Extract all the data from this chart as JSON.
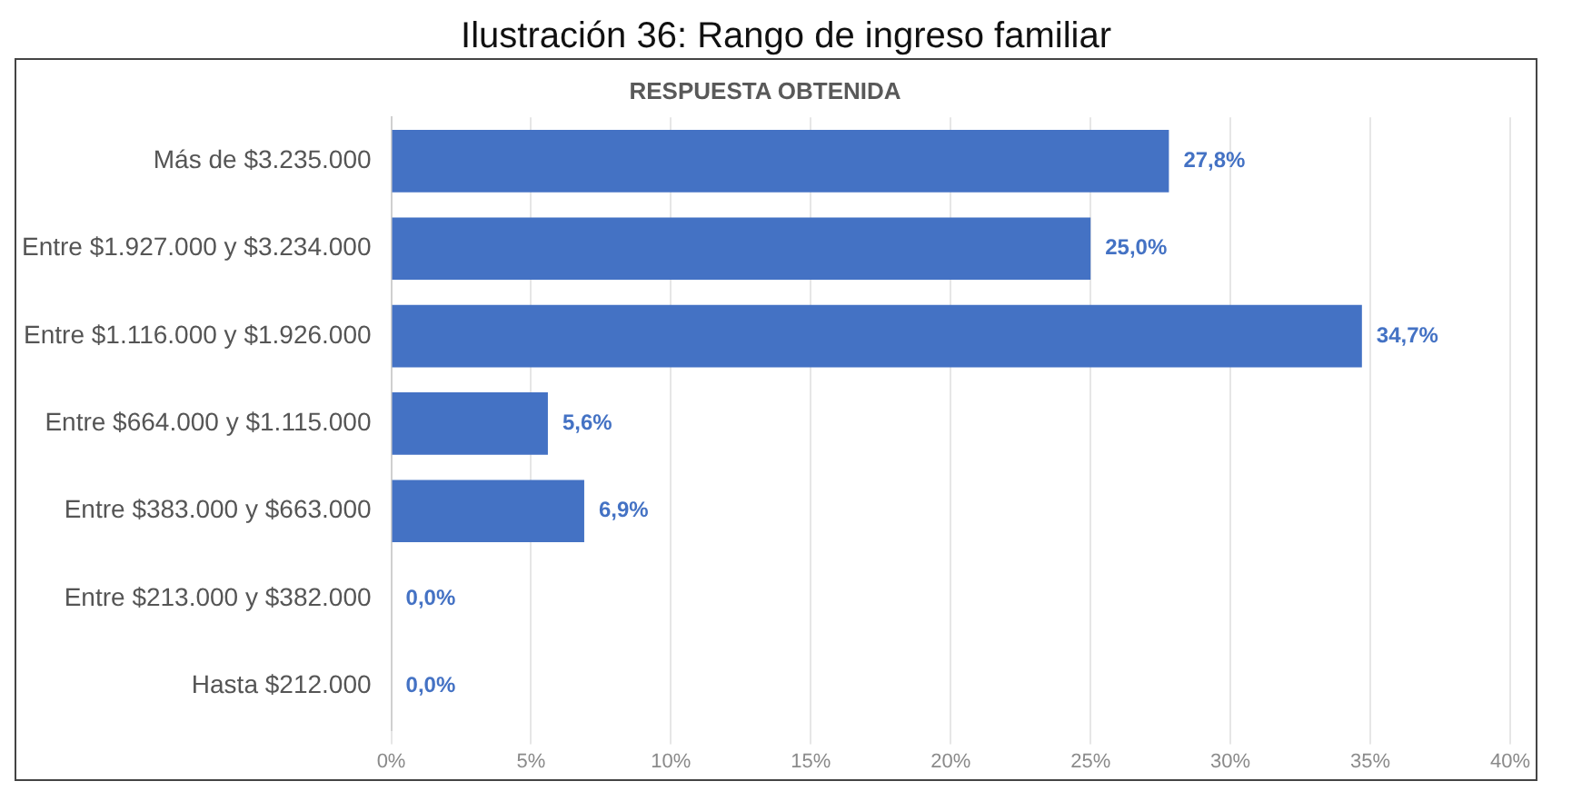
{
  "chart_data": {
    "type": "bar",
    "orientation": "horizontal",
    "title": "RESPUESTA OBTENIDA",
    "annotations": [
      "Ilustración 36: Rango de ingreso familiar"
    ],
    "categories": [
      "Más de $3.235.000",
      "Entre $1.927.000 y $3.234.000",
      "Entre $1.116.000 y $1.926.000",
      "Entre $664.000 y $1.115.000",
      "Entre $383.000 y $663.000",
      "Entre $213.000 y $382.000",
      "Hasta $212.000"
    ],
    "values": [
      27.8,
      25.0,
      34.7,
      5.6,
      6.9,
      0.0,
      0.0
    ],
    "value_labels": [
      "27,8%",
      "25,0%",
      "34,7%",
      "5,6%",
      "6,9%",
      "0,0%",
      "0,0%"
    ],
    "color": "#4472c4",
    "xlim": [
      0,
      40
    ],
    "xticks": [
      {
        "value": 0,
        "label": "0%"
      },
      {
        "value": 5,
        "label": "5%"
      },
      {
        "value": 10,
        "label": "10%"
      },
      {
        "value": 15,
        "label": "15%"
      },
      {
        "value": 20,
        "label": "20%"
      },
      {
        "value": 25,
        "label": "25%"
      },
      {
        "value": 30,
        "label": "30%"
      },
      {
        "value": 35,
        "label": "35%"
      },
      {
        "value": 40,
        "label": "40%"
      }
    ],
    "grid": "x",
    "legend": false
  }
}
